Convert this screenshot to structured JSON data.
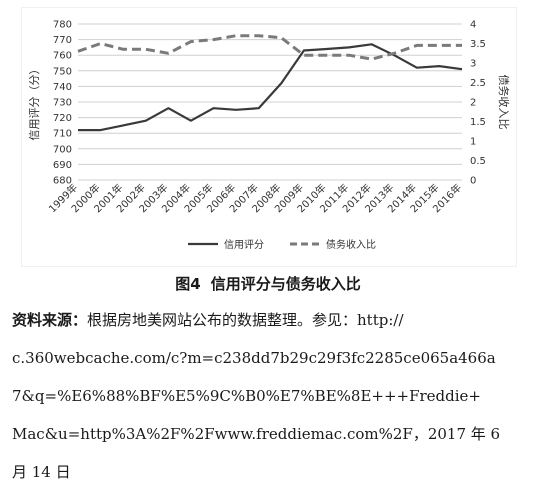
{
  "chart_data": {
    "type": "line",
    "title": "",
    "categories": [
      "1999年",
      "2000年",
      "2001年",
      "2002年",
      "2003年",
      "2004年",
      "2005年",
      "2006年",
      "2007年",
      "2008年",
      "2009年",
      "2010年",
      "2011年",
      "2012年",
      "2013年",
      "2014年",
      "2015年",
      "2016年"
    ],
    "left_axis": {
      "label": "信用评分（分）",
      "ylim": [
        680,
        780
      ],
      "ticks": [
        680,
        690,
        700,
        710,
        720,
        730,
        740,
        750,
        760,
        770,
        780
      ]
    },
    "right_axis": {
      "label": "债务收入比",
      "ylim": [
        0,
        4
      ],
      "ticks": [
        0,
        0.5,
        1,
        1.5,
        2,
        2.5,
        3,
        3.5,
        4
      ],
      "tick_labels": [
        "0",
        "0.5",
        "1",
        "1.5",
        "2",
        "2.5",
        "3",
        "3.5",
        "4"
      ]
    },
    "series": [
      {
        "name": "信用评分",
        "axis": "left",
        "style": "solid",
        "values": [
          712,
          712,
          715,
          718,
          726,
          718,
          726,
          725,
          726,
          742,
          763,
          764,
          765,
          767,
          760,
          752,
          753,
          751
        ]
      },
      {
        "name": "债务收入比",
        "axis": "right",
        "style": "dashed",
        "values": [
          3.3,
          3.5,
          3.35,
          3.35,
          3.25,
          3.55,
          3.6,
          3.7,
          3.7,
          3.65,
          3.2,
          3.2,
          3.2,
          3.1,
          3.25,
          3.45,
          3.45,
          3.45
        ]
      }
    ],
    "legend_position": "bottom",
    "grid": true
  },
  "caption": {
    "number": "图4",
    "text": "信用评分与债务收入比"
  },
  "source": {
    "label": "资料来源：",
    "line1": "根据房地美网站公布的数据整理。参见：http://",
    "line2": "c.360webcache.com/c?m=c238dd7b29c29f3fc2285ce065a466a",
    "line3": "7&q=%E6%88%BF%E5%9C%B0%E7%BE%8E+++Freddie+",
    "line4": "Mac&u=http%3A%2F%2Fwww.freddiemac.com%2F，2017 年 6",
    "line5": "月 14 日"
  },
  "colors": {
    "credit_line": "#3a3a3a",
    "dti_line": "#7a7a7a",
    "grid": "#d0d0d0"
  }
}
